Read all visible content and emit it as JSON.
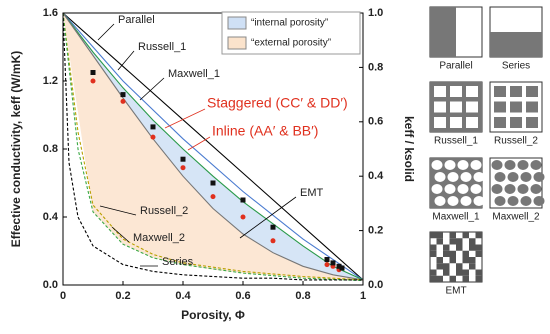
{
  "chart_data": {
    "type": "line",
    "xlabel": "Porosity, Φ",
    "ylabel": "Effective conductivity, keff (W/mK)",
    "y2label": "keff / ksolid",
    "xlim": [
      0,
      1
    ],
    "ylim": [
      0,
      1.6
    ],
    "y2lim": [
      0,
      1
    ],
    "xticks": [
      0,
      0.2,
      0.4,
      0.6,
      0.8,
      1
    ],
    "yticks": [
      {
        "value": 0,
        "label": "0.0"
      },
      0.4,
      0.8,
      1.2,
      1.6
    ],
    "y2ticks": [
      {
        "value": 0,
        "label": "0.0"
      },
      0.2,
      0.4,
      0.6,
      0.8,
      {
        "value": 1,
        "label": "1.0"
      }
    ],
    "regions": [
      {
        "name": "“internal porosity”",
        "color": "#cfe0f5",
        "x": [
          0,
          0.1,
          0.2,
          0.3,
          0.4,
          0.5,
          0.6,
          0.7,
          0.8,
          0.9,
          1
        ],
        "lower": [
          1.6,
          1.35,
          1.1,
          0.86,
          0.64,
          0.45,
          0.3,
          0.19,
          0.11,
          0.06,
          0.03
        ],
        "upper": [
          1.6,
          1.37,
          1.16,
          0.97,
          0.8,
          0.64,
          0.49,
          0.36,
          0.23,
          0.11,
          0.03
        ]
      },
      {
        "name": "“external porosity”",
        "color": "#fbe3cc",
        "x": [
          0,
          0.1,
          0.2,
          0.3,
          0.4,
          0.5,
          0.6,
          0.7,
          0.8,
          0.9,
          1
        ],
        "lower": [
          1.6,
          0.43,
          0.24,
          0.16,
          0.12,
          0.09,
          0.07,
          0.055,
          0.04,
          0.03,
          0.026
        ],
        "upper": [
          1.6,
          1.35,
          1.1,
          0.86,
          0.64,
          0.45,
          0.3,
          0.19,
          0.11,
          0.06,
          0.03
        ]
      }
    ],
    "series": [
      {
        "name": "Parallel",
        "color": "#000000",
        "dash": false,
        "x": [
          0,
          1
        ],
        "values": [
          1.6,
          0.03
        ]
      },
      {
        "name": "Russell_1",
        "color": "#4a7bd0",
        "dash": false,
        "x": [
          0,
          0.2,
          0.4,
          0.6,
          0.8,
          1
        ],
        "values": [
          1.6,
          1.2,
          0.86,
          0.55,
          0.27,
          0.03
        ]
      },
      {
        "name": "Maxwell_1",
        "color": "#2a9a4a",
        "dash": false,
        "x": [
          0,
          0.1,
          0.2,
          0.3,
          0.4,
          0.5,
          0.6,
          0.7,
          0.8,
          0.9,
          1
        ],
        "values": [
          1.6,
          1.37,
          1.16,
          0.97,
          0.8,
          0.64,
          0.49,
          0.36,
          0.23,
          0.11,
          0.03
        ]
      },
      {
        "name": "EMT",
        "color": "#777777",
        "dash": false,
        "x": [
          0,
          0.1,
          0.2,
          0.3,
          0.4,
          0.5,
          0.6,
          0.7,
          0.8,
          0.9,
          1
        ],
        "values": [
          1.6,
          1.35,
          1.1,
          0.86,
          0.64,
          0.45,
          0.3,
          0.19,
          0.11,
          0.06,
          0.03
        ]
      },
      {
        "name": "Russell_2",
        "color": "#b8a000",
        "dash": true,
        "x": [
          0,
          0.05,
          0.1,
          0.2,
          0.3,
          0.4,
          0.6,
          0.8,
          1
        ],
        "values": [
          1.6,
          0.9,
          0.47,
          0.27,
          0.18,
          0.13,
          0.08,
          0.05,
          0.03
        ]
      },
      {
        "name": "Maxwell_2",
        "color": "#3aa845",
        "dash": true,
        "x": [
          0,
          0.05,
          0.1,
          0.2,
          0.3,
          0.4,
          0.6,
          0.8,
          1
        ],
        "values": [
          1.6,
          0.8,
          0.43,
          0.24,
          0.16,
          0.12,
          0.07,
          0.04,
          0.026
        ]
      },
      {
        "name": "Series",
        "color": "#000000",
        "dash": true,
        "x": [
          0,
          0.02,
          0.05,
          0.1,
          0.2,
          0.3,
          0.4,
          0.5,
          0.6,
          0.7,
          0.8,
          0.9,
          1
        ],
        "values": [
          1.6,
          0.72,
          0.4,
          0.23,
          0.12,
          0.08,
          0.06,
          0.05,
          0.04,
          0.04,
          0.03,
          0.03,
          0.03
        ]
      }
    ],
    "points": [
      {
        "name": "Staggered (CC′ & DD′)",
        "color": "#e0301e",
        "marker": "circle",
        "x": [
          0.1,
          0.2,
          0.3,
          0.4,
          0.5,
          0.6,
          0.7,
          0.88,
          0.9,
          0.92
        ],
        "values": [
          1.2,
          1.08,
          0.87,
          0.69,
          0.52,
          0.4,
          0.26,
          0.12,
          0.11,
          0.09
        ]
      },
      {
        "name": "Inline (AA′ & BB′)",
        "color": "#111111",
        "marker": "square",
        "x": [
          0.1,
          0.2,
          0.3,
          0.4,
          0.5,
          0.6,
          0.7,
          0.88,
          0.9,
          0.92,
          0.93
        ],
        "values": [
          1.25,
          1.12,
          0.93,
          0.74,
          0.6,
          0.5,
          0.34,
          0.15,
          0.13,
          0.11,
          0.1
        ]
      }
    ]
  },
  "schematics": {
    "labels": [
      "Parallel",
      "Series",
      "Russell_1",
      "Russell_2",
      "Maxwell_1",
      "Maxwell_2",
      "EMT"
    ]
  }
}
